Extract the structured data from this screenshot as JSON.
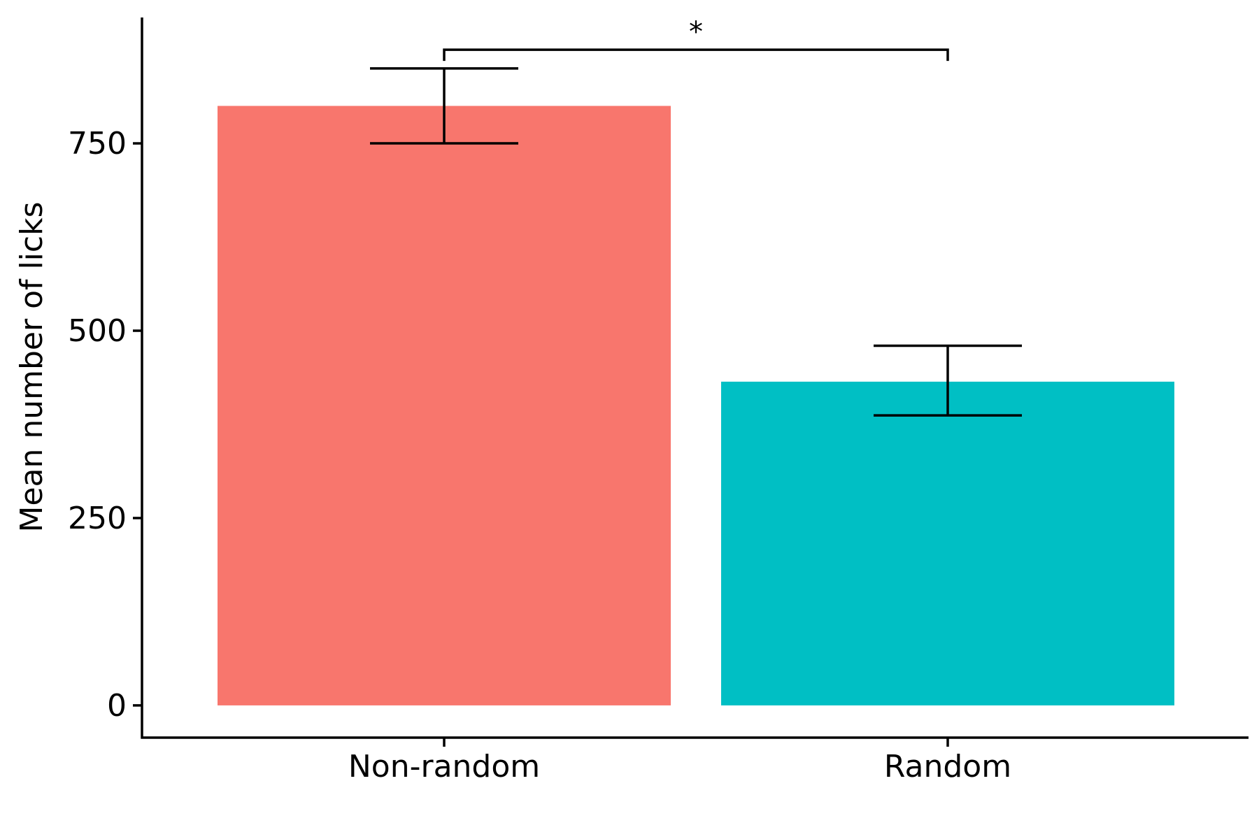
{
  "chart_data": {
    "type": "bar",
    "title": "",
    "xlabel": "",
    "ylabel": "Mean number of licks",
    "categories": [
      "Non-random",
      "Random"
    ],
    "values": [
      800,
      432
    ],
    "error_low": [
      750,
      387
    ],
    "error_high": [
      850,
      480
    ],
    "colors": [
      "#F8766D",
      "#00BFC4"
    ],
    "ylim": [
      -43,
      918
    ],
    "yticks": [
      0,
      250,
      500,
      750
    ],
    "ytick_labels": [
      "0",
      "250",
      "500",
      "750"
    ],
    "grid": false,
    "significance": {
      "from": "Non-random",
      "to": "Random",
      "label": "*",
      "bracket_y": 875,
      "tick_bottom_y": 860
    }
  }
}
